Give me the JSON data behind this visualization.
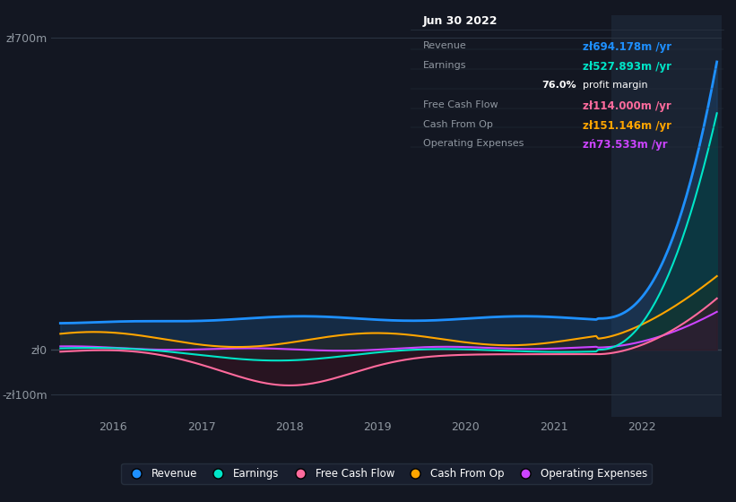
{
  "bg_color": "#131722",
  "plot_bg_color": "#131722",
  "highlight_bg_color": "#1a2332",
  "grid_color": "#2a3442",
  "text_color": "#9098a1",
  "title_color": "#ffffff",
  "ylim": [
    -150,
    750
  ],
  "yticks": [
    -100,
    0,
    700
  ],
  "ytick_labels": [
    "-zł100m",
    "zł0",
    "zł700m"
  ],
  "xticks": [
    2016,
    2017,
    2018,
    2019,
    2020,
    2021,
    2022
  ],
  "xlim_start": 2015.3,
  "xlim_end": 2022.9,
  "highlight_start": 2021.65,
  "highlight_end": 2022.9,
  "series": {
    "Revenue": {
      "color": "#1e90ff",
      "fill_color": "#1a3a5c"
    },
    "Earnings": {
      "color": "#00e5c8",
      "fill_color": "#004d44"
    },
    "FreeCashFlow": {
      "color": "#ff6b9d",
      "fill_color": "#5a1a2a"
    },
    "CashFromOp": {
      "color": "#ffa500",
      "fill_color": "#4a3000"
    },
    "OperatingExpenses": {
      "color": "#cc44ff",
      "fill_color": "#440066"
    }
  },
  "tooltip": {
    "date": "Jun 30 2022",
    "bg_color": "#0d1117",
    "border_color": "#2a3442",
    "title_color": "#ffffff",
    "label_color": "#9098a1",
    "revenue_value": "zł694.178m",
    "revenue_color": "#1e90ff",
    "earnings_value": "zł527.893m",
    "earnings_color": "#00e5c8",
    "margin_text": "76.0% profit margin",
    "margin_color": "#ffffff",
    "fcf_value": "zł114.000m",
    "fcf_color": "#ff6b9d",
    "cashop_value": "zł151.146m",
    "cashop_color": "#ffa500",
    "opex_value": "zń73.533m",
    "opex_color": "#cc44ff"
  },
  "legend_items": [
    {
      "label": "Revenue",
      "color": "#1e90ff"
    },
    {
      "label": "Earnings",
      "color": "#00e5c8"
    },
    {
      "label": "Free Cash Flow",
      "color": "#ff6b9d"
    },
    {
      "label": "Cash From Op",
      "color": "#ffa500"
    },
    {
      "label": "Operating Expenses",
      "color": "#cc44ff"
    }
  ]
}
